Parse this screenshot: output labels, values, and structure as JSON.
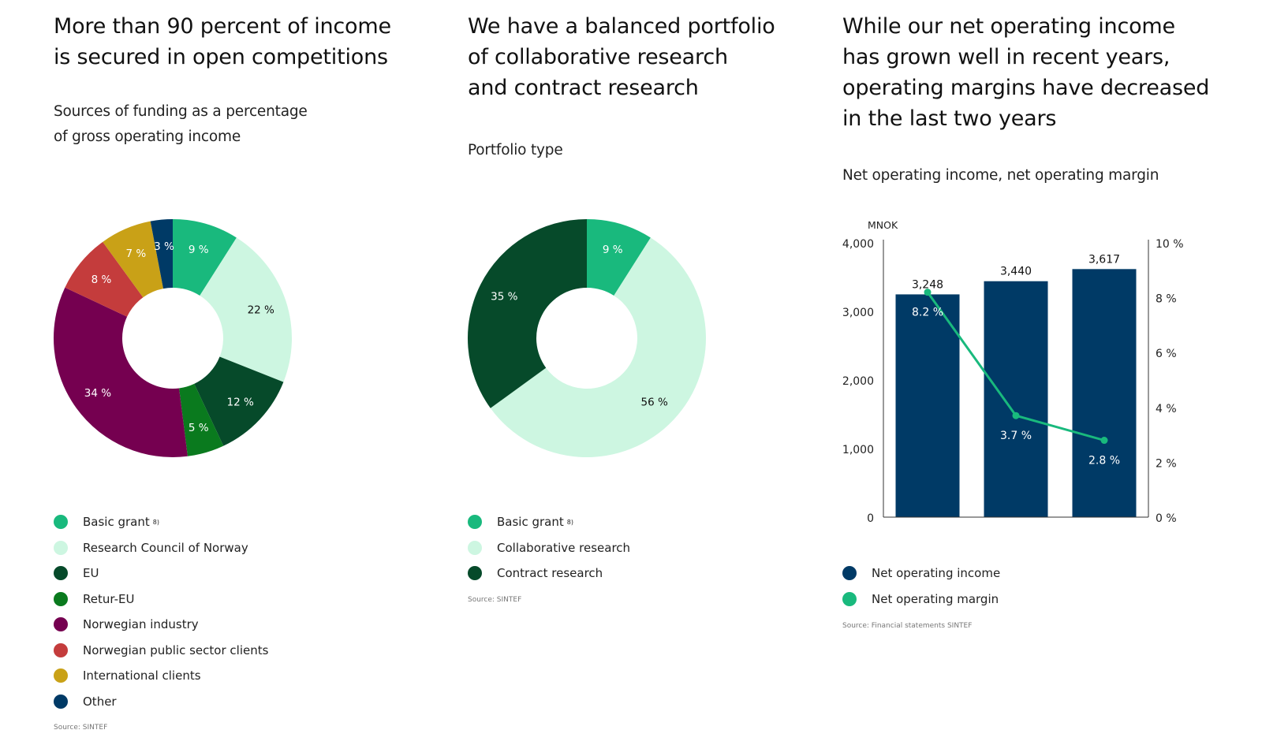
{
  "palette": {
    "basic_grant": "#19b97d",
    "research_council": "#cdf6e1",
    "eu": "#064a2a",
    "retur_eu": "#0a7a1e",
    "norwegian_industry": "#750050",
    "public_sector": "#c43c3c",
    "international": "#c9a117",
    "other": "#003a66",
    "bar": "#003a66",
    "line": "#19b97d"
  },
  "panel1": {
    "title_line1": "More than 90 percent of income",
    "title_line2": "is secured in open competitions",
    "subtitle_line1": "Sources of funding as a percentage",
    "subtitle_line2": "of gross operating income",
    "note_marker": "8)",
    "source": "Source: SINTEF"
  },
  "panel2": {
    "title_line1": "We have a balanced portfolio",
    "title_line2": "of collaborative research",
    "title_line3": "and contract research",
    "subtitle": "Portfolio type",
    "note_marker": "8)",
    "source": "Source: SINTEF"
  },
  "panel3": {
    "title_line1": "While our net operating income",
    "title_line2": "has grown well in recent years,",
    "title_line3": "operating margins have decreased",
    "title_line4": "in the last two years",
    "subtitle": "Net operating income, net operating margin",
    "source": "Source: Financial statements SINTEF"
  },
  "chart_data": [
    {
      "type": "pie",
      "variant": "donut",
      "title": "Sources of funding as a percentage of gross operating income",
      "slices": [
        {
          "label": "Basic grant",
          "value": 9,
          "display": "9 %",
          "color_key": "basic_grant",
          "note": "8)"
        },
        {
          "label": "Research Council of Norway",
          "value": 22,
          "display": "22 %",
          "color_key": "research_council"
        },
        {
          "label": "EU",
          "value": 12,
          "display": "12 %",
          "color_key": "eu"
        },
        {
          "label": "Retur-EU",
          "value": 5,
          "display": "5 %",
          "color_key": "retur_eu"
        },
        {
          "label": "Norwegian industry",
          "value": 34,
          "display": "34 %",
          "color_key": "norwegian_industry"
        },
        {
          "label": "Norwegian public sector clients",
          "value": 8,
          "display": "8 %",
          "color_key": "public_sector"
        },
        {
          "label": "International clients",
          "value": 7,
          "display": "7 %",
          "color_key": "international"
        },
        {
          "label": "Other",
          "value": 3,
          "display": "3 %",
          "color_key": "other"
        }
      ]
    },
    {
      "type": "pie",
      "variant": "donut",
      "title": "Portfolio type",
      "slices": [
        {
          "label": "Basic grant",
          "value": 9,
          "display": "9 %",
          "color_key": "basic_grant",
          "note": "8)"
        },
        {
          "label": "Collaborative research",
          "value": 56,
          "display": "56 %",
          "color_key": "research_council"
        },
        {
          "label": "Contract research",
          "value": 35,
          "display": "35 %",
          "color_key": "eu"
        }
      ]
    },
    {
      "type": "bar",
      "combo": "bar+line",
      "title": "Net operating income, net operating margin",
      "ylabel": "MNOK",
      "ylim": [
        0,
        4000
      ],
      "yticks": [
        "0",
        "1,000",
        "2,000",
        "3,000",
        "4,000"
      ],
      "y2lim": [
        0,
        10
      ],
      "y2ticks": [
        "0 %",
        "2 %",
        "4 %",
        "6 %",
        "8 %",
        "10 %"
      ],
      "categories": [
        "",
        "",
        ""
      ],
      "series": [
        {
          "name": "Net operating income",
          "kind": "bar",
          "values": [
            3248,
            3440,
            3617
          ],
          "labels": [
            "3,248",
            "3,440",
            "3,617"
          ],
          "color_key": "bar"
        },
        {
          "name": "Net operating margin",
          "kind": "line",
          "axis": "right",
          "values": [
            8.2,
            3.7,
            2.8
          ],
          "labels": [
            "8.2 %",
            "3.7 %",
            "2.8 %"
          ],
          "color_key": "line"
        }
      ]
    }
  ]
}
